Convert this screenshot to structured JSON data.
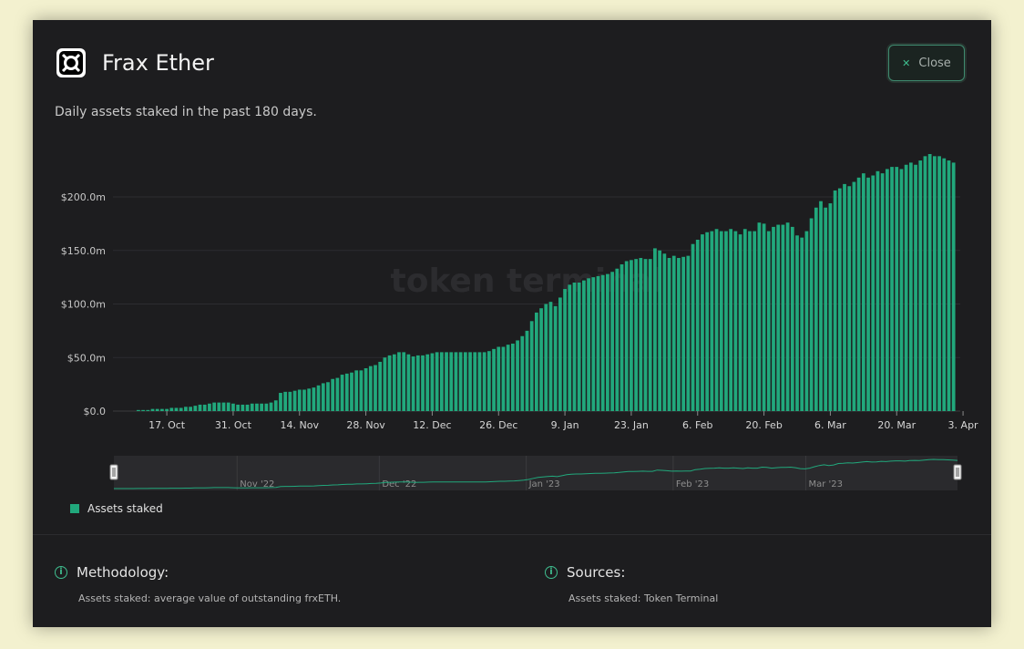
{
  "header": {
    "title": "Frax Ether",
    "close_label": "Close",
    "subtitle": "Daily assets staked in the past 180 days."
  },
  "chart_data": {
    "type": "bar",
    "watermark": "token terminal",
    "y_unit_note": "USD millions",
    "yticks": [
      "$0.0",
      "$50.0m",
      "$100.0m",
      "$150.0m",
      "$200.0m"
    ],
    "ylim": [
      0,
      240
    ],
    "xticks": [
      "17. Oct",
      "31. Oct",
      "14. Nov",
      "28. Nov",
      "12. Dec",
      "26. Dec",
      "9. Jan",
      "23. Jan",
      "6. Feb",
      "20. Feb",
      "6. Mar",
      "20. Mar",
      "3. Apr"
    ],
    "start_date": "2022-10-06",
    "series": [
      {
        "name": "Assets staked",
        "color": "#21a87c",
        "values": [
          0,
          0,
          0,
          0,
          0,
          1,
          1,
          1,
          2,
          2,
          2,
          2,
          3,
          3,
          3,
          4,
          4,
          5,
          6,
          6,
          7,
          8,
          8,
          8,
          8,
          7,
          6,
          6,
          6,
          7,
          7,
          7,
          7,
          8,
          10,
          17,
          18,
          18,
          19,
          20,
          20,
          21,
          22,
          24,
          26,
          27,
          30,
          31,
          34,
          35,
          36,
          38,
          38,
          40,
          42,
          43,
          46,
          50,
          52,
          53,
          55,
          55,
          53,
          51,
          52,
          52,
          53,
          54,
          55,
          55,
          55,
          55,
          55,
          55,
          55,
          55,
          55,
          55,
          55,
          56,
          58,
          60,
          60,
          62,
          63,
          66,
          70,
          75,
          84,
          92,
          96,
          100,
          102,
          98,
          106,
          114,
          118,
          120,
          120,
          122,
          124,
          125,
          126,
          127,
          128,
          130,
          133,
          137,
          140,
          141,
          142,
          143,
          142,
          142,
          152,
          150,
          147,
          143,
          145,
          143,
          144,
          145,
          156,
          160,
          165,
          167,
          168,
          170,
          168,
          168,
          170,
          168,
          165,
          170,
          168,
          168,
          176,
          175,
          168,
          172,
          174,
          174,
          176,
          172,
          164,
          162,
          168,
          180,
          190,
          196,
          190,
          194,
          206,
          208,
          212,
          210,
          214,
          218,
          222,
          218,
          220,
          224,
          222,
          226,
          228,
          228,
          226,
          230,
          232,
          230,
          234,
          238,
          240,
          238,
          238,
          236,
          234,
          232
        ]
      }
    ],
    "navigator": {
      "labels": [
        "Nov '22",
        "Dec '22",
        "Jan '23",
        "Feb '23",
        "Mar '23"
      ]
    },
    "legend": {
      "label": "Assets staked",
      "color": "#21a87c",
      "placement": "bottom-left"
    }
  },
  "footer": {
    "methodology_title": "Methodology:",
    "methodology_text": "Assets staked: average value of outstanding frxETH.",
    "sources_title": "Sources:",
    "sources_text": "Assets staked: Token Terminal"
  }
}
